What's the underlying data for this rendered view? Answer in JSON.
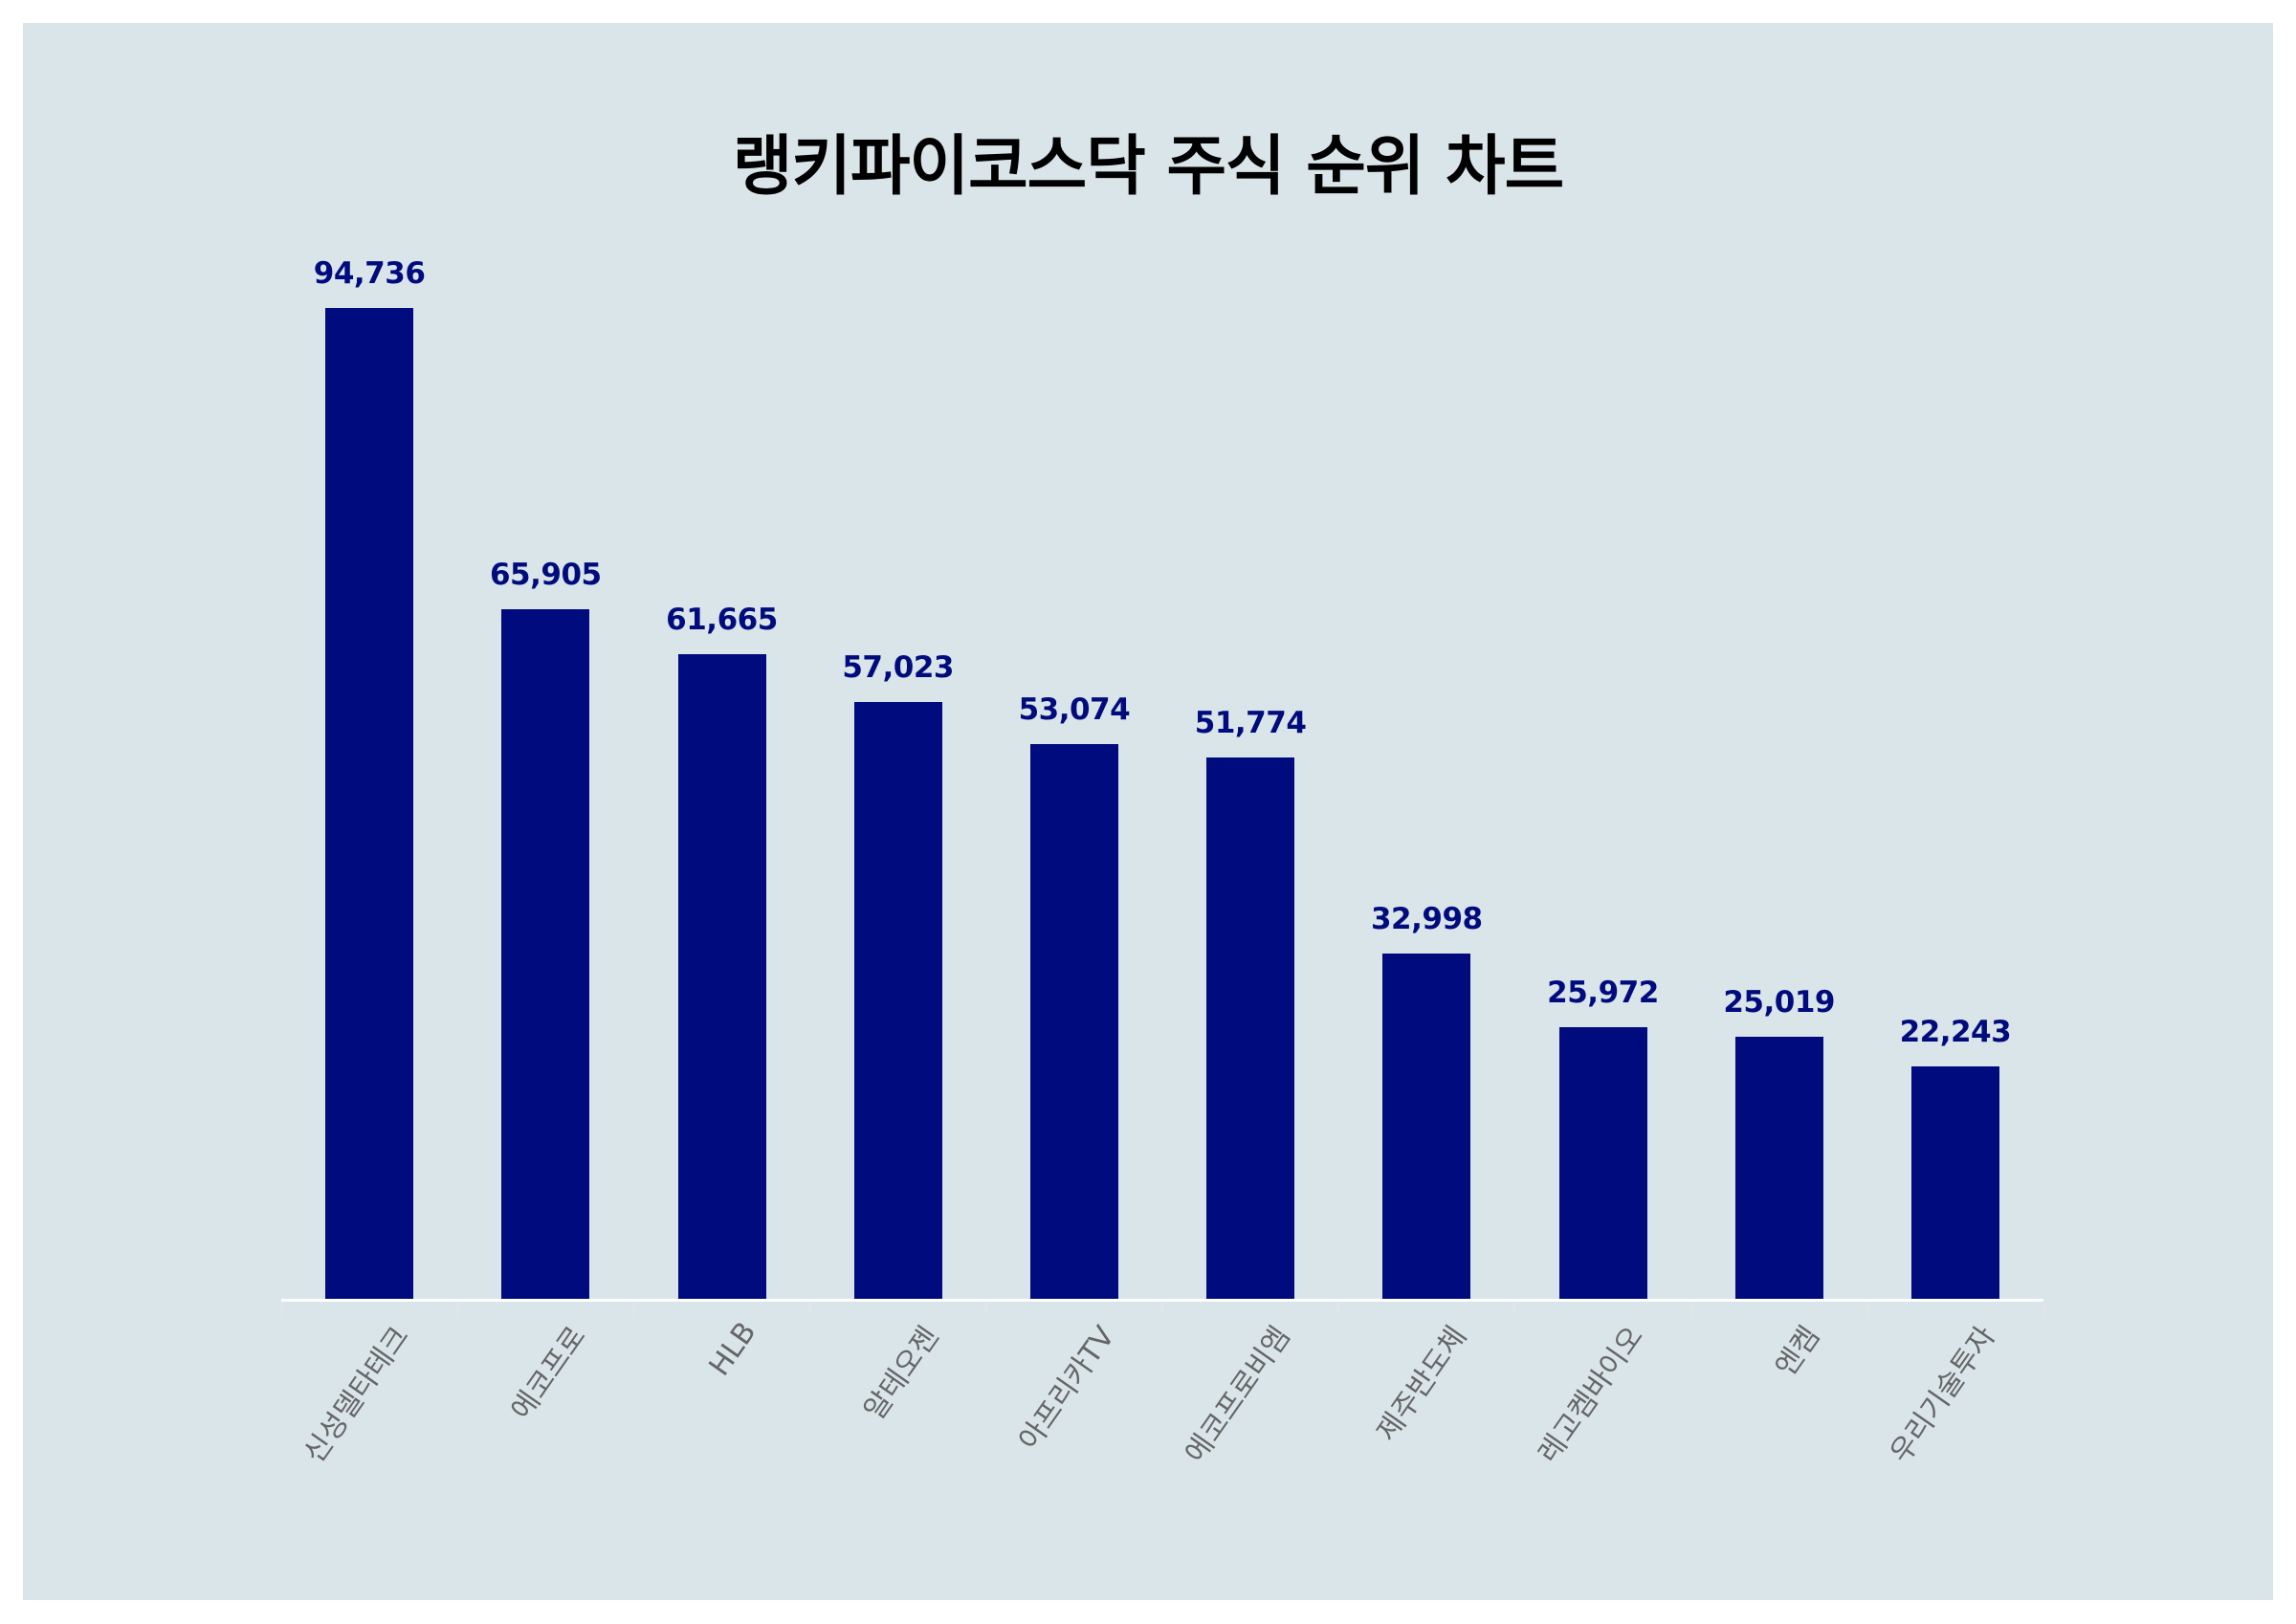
{
  "title": "랭키파이코스닥 주식 순위 차트",
  "colors": {
    "background": "#dae5ea",
    "bar": "#000c7d",
    "value_label": "#000c7d",
    "axis_label": "#666666",
    "title": "#000000"
  },
  "chart_data": {
    "type": "bar",
    "title": "랭키파이코스닥 주식 순위 차트",
    "categories": [
      "신성델타테크",
      "에코프로",
      "HLB",
      "알테오젠",
      "아프리카TV",
      "에코프로비엠",
      "제주반도체",
      "레고켐바이오",
      "엔켐",
      "우리기술투자"
    ],
    "values": [
      94736,
      65905,
      61665,
      57023,
      53074,
      51774,
      32998,
      25972,
      25019,
      22243
    ],
    "value_labels": [
      "94,736",
      "65,905",
      "61,665",
      "57,023",
      "53,074",
      "51,774",
      "32,998",
      "25,972",
      "25,019",
      "22,243"
    ],
    "xlabel": "",
    "ylabel": "",
    "ylim": [
      0,
      94736
    ],
    "grid": false,
    "legend": null,
    "x_tick_rotation": -55
  }
}
